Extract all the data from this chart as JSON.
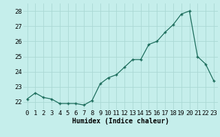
{
  "x": [
    0,
    1,
    2,
    3,
    4,
    5,
    6,
    7,
    8,
    9,
    10,
    11,
    12,
    13,
    14,
    15,
    16,
    17,
    18,
    19,
    20,
    21,
    22,
    23
  ],
  "y": [
    22.2,
    22.6,
    22.3,
    22.2,
    21.9,
    21.9,
    21.9,
    21.8,
    22.1,
    23.2,
    23.6,
    23.8,
    24.3,
    24.8,
    24.8,
    25.8,
    26.0,
    26.6,
    27.1,
    27.8,
    28.0,
    25.0,
    24.5,
    23.4
  ],
  "line_color": "#1a6b5a",
  "marker": "+",
  "bg_color": "#c5eeeb",
  "grid_color": "#aad8d4",
  "xlabel": "Humidex (Indice chaleur)",
  "xlabel_fontsize": 7,
  "tick_fontsize": 6.5,
  "ylim": [
    21.5,
    28.5
  ],
  "xlim": [
    -0.5,
    23.5
  ],
  "yticks": [
    22,
    23,
    24,
    25,
    26,
    27,
    28
  ],
  "xticks": [
    0,
    1,
    2,
    3,
    4,
    5,
    6,
    7,
    8,
    9,
    10,
    11,
    12,
    13,
    14,
    15,
    16,
    17,
    18,
    19,
    20,
    21,
    22,
    23
  ]
}
